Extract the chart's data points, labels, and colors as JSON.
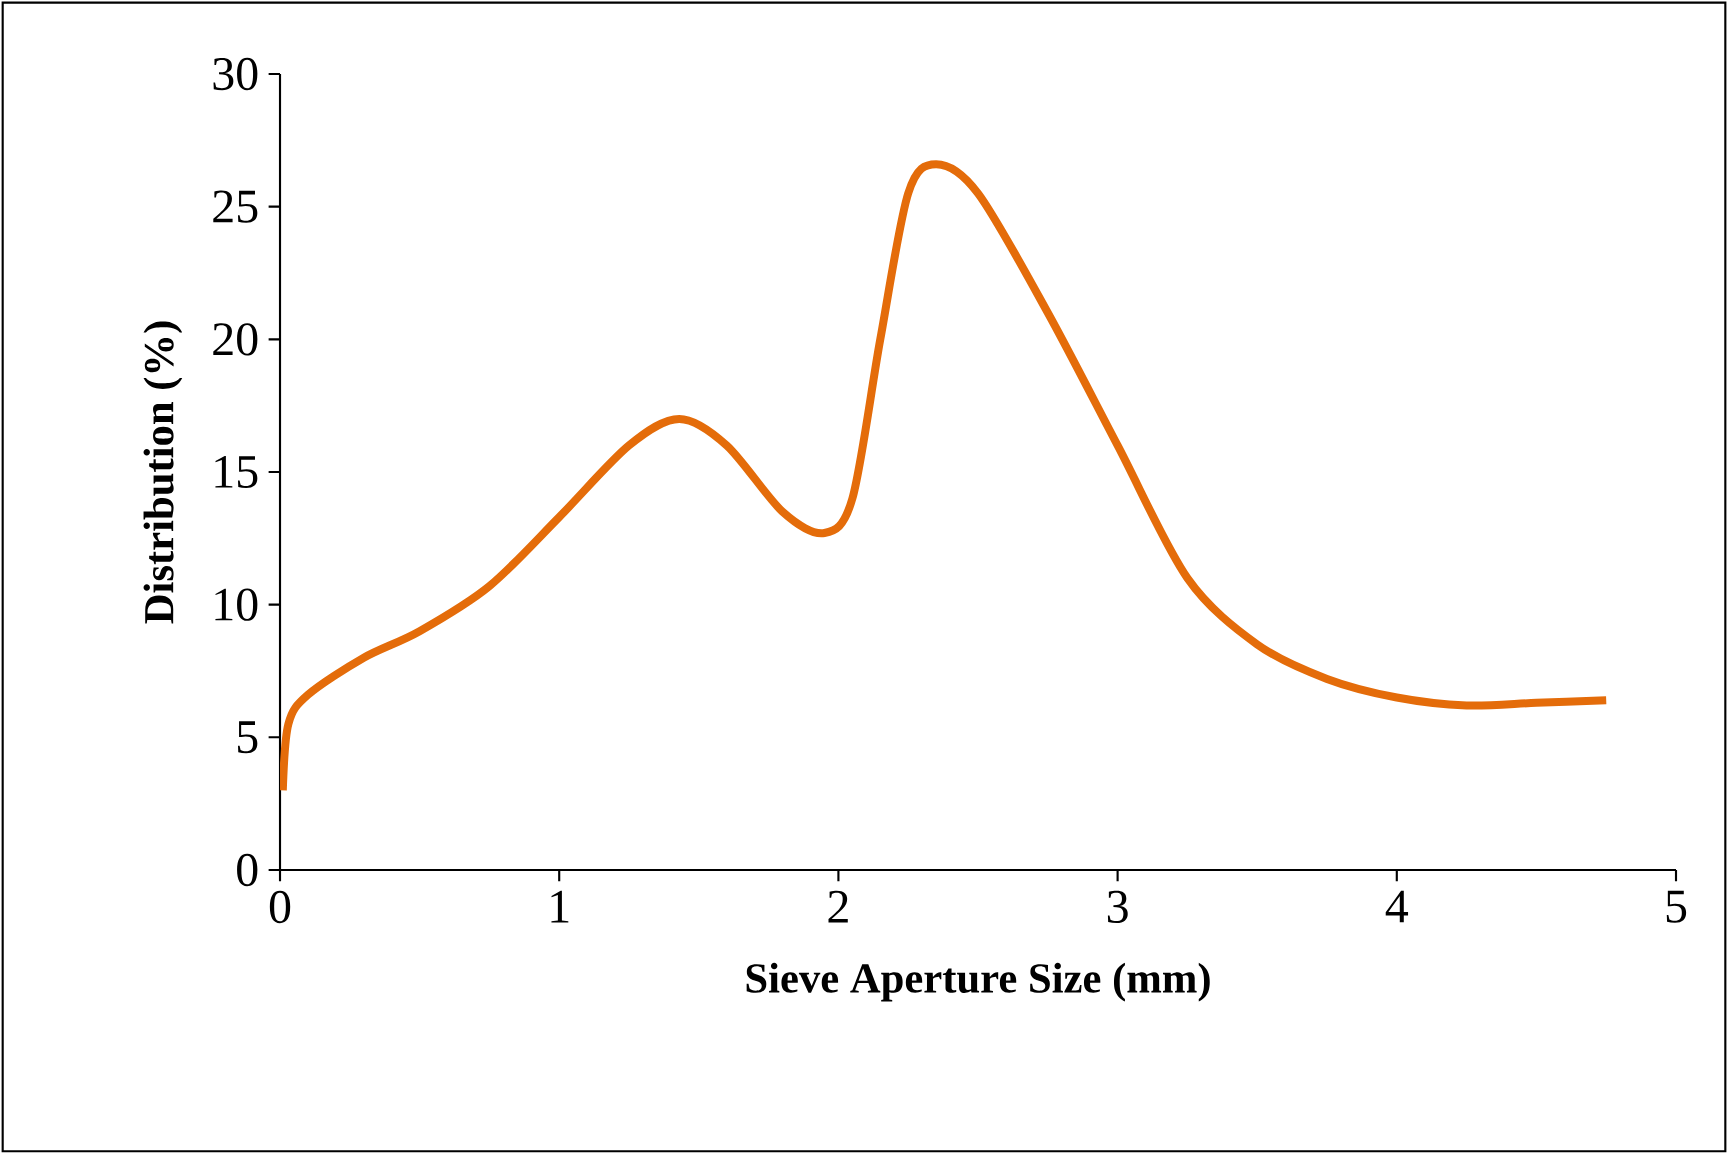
{
  "chart_data": {
    "type": "line",
    "xlabel": "Sieve Aperture Size (mm)",
    "ylabel": "Distribution (%)",
    "xlim": [
      0,
      5
    ],
    "ylim": [
      0,
      30
    ],
    "xticks": [
      0,
      1,
      2,
      3,
      4,
      5
    ],
    "yticks": [
      0,
      5,
      10,
      15,
      20,
      25,
      30
    ],
    "grid": false,
    "legend": false,
    "marker": "none",
    "line_style": "solid",
    "series": [
      {
        "color": "#e46c0a",
        "x": [
          0.01,
          0.03,
          0.1,
          0.3,
          0.5,
          0.75,
          1.0,
          1.25,
          1.43,
          1.6,
          1.8,
          1.95,
          2.05,
          2.15,
          2.25,
          2.35,
          2.5,
          2.75,
          3.0,
          3.25,
          3.5,
          3.75,
          4.0,
          4.25,
          4.5,
          4.75
        ],
        "values": [
          3,
          5.5,
          6.6,
          8,
          9,
          10.7,
          13.3,
          16,
          17,
          16,
          13.5,
          12.7,
          14,
          20,
          25.5,
          26.6,
          25.5,
          21,
          16,
          11,
          8.5,
          7.2,
          6.5,
          6.2,
          6.3,
          6.4
        ]
      }
    ]
  }
}
